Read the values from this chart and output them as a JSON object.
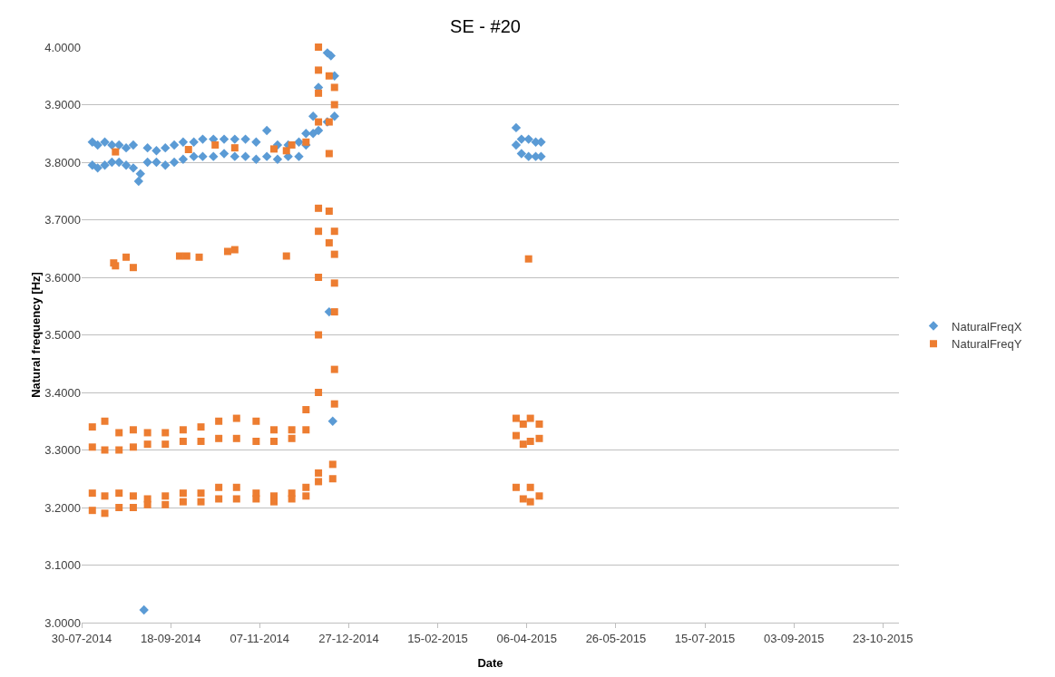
{
  "chart_data": {
    "type": "scatter",
    "title": "SE - #20",
    "xlabel": "Date",
    "ylabel": "Natural frequency [Hz]",
    "xlim": [
      "2014-07-30",
      "2015-11-01"
    ],
    "xticks": [
      {
        "value": "2014-07-30",
        "label": "30-07-2014"
      },
      {
        "value": "2014-09-18",
        "label": "18-09-2014"
      },
      {
        "value": "2014-11-07",
        "label": "07-11-2014"
      },
      {
        "value": "2014-12-27",
        "label": "27-12-2014"
      },
      {
        "value": "2015-02-15",
        "label": "15-02-2015"
      },
      {
        "value": "2015-04-06",
        "label": "06-04-2015"
      },
      {
        "value": "2015-05-26",
        "label": "26-05-2015"
      },
      {
        "value": "2015-07-15",
        "label": "15-07-2015"
      },
      {
        "value": "2015-09-03",
        "label": "03-09-2015"
      },
      {
        "value": "2015-10-23",
        "label": "23-10-2015"
      }
    ],
    "ylim": [
      3,
      4
    ],
    "yticks": [
      {
        "value": 3,
        "label": "3.0000"
      },
      {
        "value": 3.1,
        "label": "3.1000"
      },
      {
        "value": 3.2,
        "label": "3.2000"
      },
      {
        "value": 3.3,
        "label": "3.3000"
      },
      {
        "value": 3.4,
        "label": "3.4000"
      },
      {
        "value": 3.5,
        "label": "3.5000"
      },
      {
        "value": 3.6,
        "label": "3.6000"
      },
      {
        "value": 3.7,
        "label": "3.7000"
      },
      {
        "value": 3.8,
        "label": "3.8000"
      },
      {
        "value": 3.9,
        "label": "3.9000"
      },
      {
        "value": 4,
        "label": "4.0000"
      }
    ],
    "grid": "y",
    "legend": "right",
    "series": [
      {
        "name": "NaturalFreqX",
        "color": "#5b9bd5",
        "marker": "diamond",
        "x": [
          "2014-08-05",
          "2014-08-05",
          "2014-08-08",
          "2014-08-08",
          "2014-08-12",
          "2014-08-12",
          "2014-08-16",
          "2014-08-16",
          "2014-08-20",
          "2014-08-20",
          "2014-08-24",
          "2014-08-24",
          "2014-08-28",
          "2014-08-28",
          "2014-08-31",
          "2014-09-01",
          "2014-09-03",
          "2014-09-05",
          "2014-09-05",
          "2014-09-10",
          "2014-09-10",
          "2014-09-15",
          "2014-09-15",
          "2014-09-20",
          "2014-09-20",
          "2014-09-25",
          "2014-09-25",
          "2014-10-01",
          "2014-10-01",
          "2014-10-06",
          "2014-10-06",
          "2014-10-12",
          "2014-10-12",
          "2014-10-18",
          "2014-10-18",
          "2014-10-24",
          "2014-10-24",
          "2014-10-30",
          "2014-10-30",
          "2014-11-05",
          "2014-11-05",
          "2014-11-11",
          "2014-11-11",
          "2014-11-17",
          "2014-11-17",
          "2014-11-23",
          "2014-11-23",
          "2014-11-29",
          "2014-11-29",
          "2014-12-03",
          "2014-12-03",
          "2014-12-07",
          "2014-12-07",
          "2014-12-10",
          "2014-12-10",
          "2014-12-15",
          "2014-12-15",
          "2014-12-16",
          "2014-12-17",
          "2014-12-18",
          "2014-12-19",
          "2014-12-19",
          "2015-03-31",
          "2015-03-31",
          "2015-04-03",
          "2015-04-03",
          "2015-04-07",
          "2015-04-07",
          "2015-04-11",
          "2015-04-11",
          "2015-04-14",
          "2015-04-14"
        ],
        "values": [
          3.835,
          3.795,
          3.83,
          3.79,
          3.835,
          3.795,
          3.83,
          3.8,
          3.83,
          3.8,
          3.825,
          3.795,
          3.83,
          3.79,
          3.767,
          3.78,
          3.022,
          3.825,
          3.8,
          3.82,
          3.8,
          3.825,
          3.795,
          3.83,
          3.8,
          3.835,
          3.805,
          3.835,
          3.81,
          3.84,
          3.81,
          3.84,
          3.81,
          3.84,
          3.815,
          3.84,
          3.81,
          3.84,
          3.81,
          3.835,
          3.805,
          3.855,
          3.81,
          3.83,
          3.805,
          3.83,
          3.81,
          3.835,
          3.81,
          3.85,
          3.83,
          3.88,
          3.85,
          3.93,
          3.855,
          3.99,
          3.87,
          3.54,
          3.985,
          3.35,
          3.95,
          3.88,
          3.86,
          3.83,
          3.84,
          3.815,
          3.84,
          3.81,
          3.835,
          3.81,
          3.835,
          3.81
        ]
      },
      {
        "name": "NaturalFreqY",
        "color": "#ed7d31",
        "marker": "square",
        "x": [
          "2014-08-05",
          "2014-08-05",
          "2014-08-12",
          "2014-08-12",
          "2014-08-20",
          "2014-08-20",
          "2014-08-28",
          "2014-08-28",
          "2014-09-05",
          "2014-09-05",
          "2014-09-15",
          "2014-09-15",
          "2014-09-25",
          "2014-09-25",
          "2014-10-05",
          "2014-10-05",
          "2014-10-15",
          "2014-10-15",
          "2014-10-25",
          "2014-10-25",
          "2014-11-05",
          "2014-11-05",
          "2014-11-15",
          "2014-11-15",
          "2014-11-25",
          "2014-11-25",
          "2014-12-03",
          "2014-12-03",
          "2014-08-05",
          "2014-08-05",
          "2014-08-12",
          "2014-08-12",
          "2014-08-20",
          "2014-08-20",
          "2014-08-28",
          "2014-08-28",
          "2014-09-05",
          "2014-09-05",
          "2014-09-15",
          "2014-09-15",
          "2014-09-25",
          "2014-09-25",
          "2014-10-05",
          "2014-10-05",
          "2014-10-15",
          "2014-10-15",
          "2014-10-25",
          "2014-10-25",
          "2014-11-05",
          "2014-11-05",
          "2014-11-15",
          "2014-11-15",
          "2014-11-25",
          "2014-11-25",
          "2014-12-03",
          "2014-12-03",
          "2014-12-10",
          "2014-12-10",
          "2014-12-18",
          "2014-12-18",
          "2014-08-17",
          "2014-08-18",
          "2014-08-24",
          "2014-08-28",
          "2014-09-23",
          "2014-09-27",
          "2014-10-04",
          "2014-10-20",
          "2014-10-24",
          "2014-11-22",
          "2014-08-18",
          "2014-09-28",
          "2014-10-13",
          "2014-10-24",
          "2014-11-15",
          "2014-11-22",
          "2014-11-25",
          "2014-12-03",
          "2014-12-10",
          "2014-12-10",
          "2014-12-10",
          "2014-12-10",
          "2014-12-10",
          "2014-12-10",
          "2014-12-10",
          "2014-12-10",
          "2014-12-10",
          "2014-12-16",
          "2014-12-16",
          "2014-12-16",
          "2014-12-16",
          "2014-12-16",
          "2014-12-19",
          "2014-12-19",
          "2014-12-19",
          "2014-12-19",
          "2014-12-19",
          "2014-12-19",
          "2014-12-19",
          "2014-12-19",
          "2015-03-31",
          "2015-03-31",
          "2015-04-04",
          "2015-04-04",
          "2015-04-08",
          "2015-04-08",
          "2015-04-13",
          "2015-04-13",
          "2015-03-31",
          "2015-04-04",
          "2015-04-08",
          "2015-04-08",
          "2015-04-13",
          "2015-04-07"
        ],
        "values": [
          3.34,
          3.305,
          3.35,
          3.3,
          3.33,
          3.3,
          3.335,
          3.305,
          3.33,
          3.31,
          3.33,
          3.31,
          3.335,
          3.315,
          3.34,
          3.315,
          3.35,
          3.32,
          3.355,
          3.32,
          3.35,
          3.315,
          3.335,
          3.315,
          3.335,
          3.32,
          3.37,
          3.335,
          3.225,
          3.195,
          3.22,
          3.19,
          3.225,
          3.2,
          3.22,
          3.2,
          3.215,
          3.205,
          3.22,
          3.205,
          3.225,
          3.21,
          3.225,
          3.21,
          3.235,
          3.215,
          3.235,
          3.215,
          3.225,
          3.215,
          3.22,
          3.21,
          3.225,
          3.215,
          3.235,
          3.22,
          3.26,
          3.245,
          3.275,
          3.25,
          3.625,
          3.62,
          3.635,
          3.617,
          3.637,
          3.637,
          3.635,
          3.645,
          3.648,
          3.637,
          3.818,
          3.822,
          3.83,
          3.825,
          3.823,
          3.82,
          3.83,
          3.835,
          3.4,
          3.5,
          3.6,
          3.68,
          3.72,
          3.87,
          3.92,
          3.96,
          4.0,
          3.815,
          3.715,
          3.66,
          3.87,
          3.95,
          3.38,
          3.44,
          3.54,
          3.59,
          3.68,
          3.64,
          3.9,
          3.93,
          3.355,
          3.325,
          3.345,
          3.31,
          3.355,
          3.315,
          3.345,
          3.32,
          3.235,
          3.215,
          3.235,
          3.21,
          3.22,
          3.632
        ]
      }
    ]
  }
}
